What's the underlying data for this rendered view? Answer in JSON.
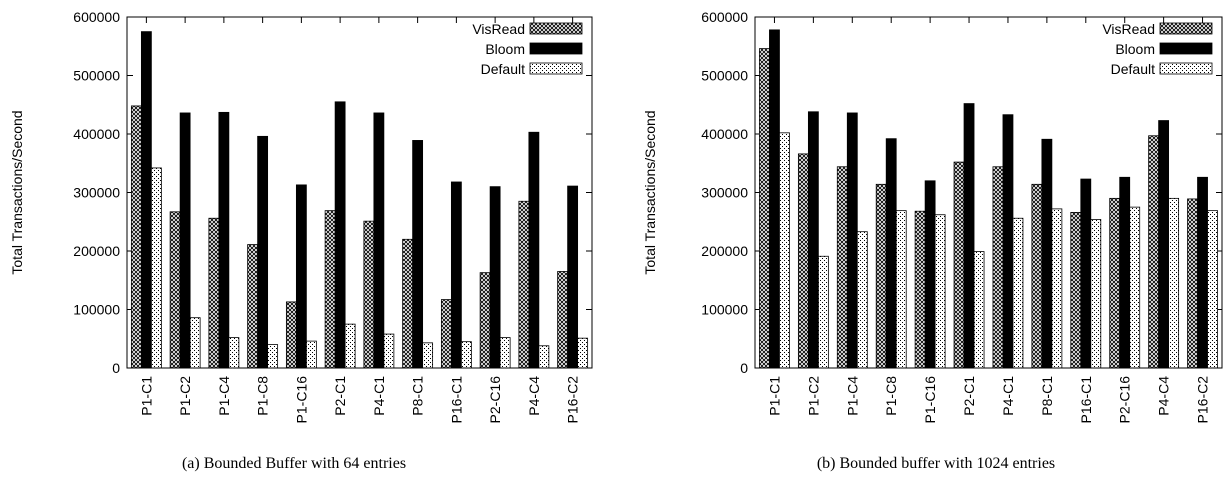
{
  "chart_data": [
    {
      "type": "bar",
      "caption": "(a)  Bounded Buffer with 64 entries",
      "ylabel": "Total Transactions/Second",
      "xlabel": "",
      "ylim": [
        0,
        600000
      ],
      "yticks": [
        0,
        100000,
        200000,
        300000,
        400000,
        500000,
        600000
      ],
      "categories": [
        "P1-C1",
        "P1-C2",
        "P1-C4",
        "P1-C8",
        "P1-C16",
        "P2-C1",
        "P4-C1",
        "P8-C1",
        "P16-C1",
        "P2-C16",
        "P4-C4",
        "P16-C2"
      ],
      "legend_position": "top-right",
      "series": [
        {
          "name": "VisRead",
          "pattern": "crosshatch",
          "values": [
            448000,
            267000,
            256000,
            211000,
            113000,
            269000,
            251000,
            220000,
            117000,
            163000,
            285000,
            165000
          ]
        },
        {
          "name": "Bloom",
          "pattern": "solid",
          "values": [
            575000,
            436000,
            437000,
            396000,
            313000,
            455000,
            436000,
            389000,
            318000,
            310000,
            403000,
            311000
          ]
        },
        {
          "name": "Default",
          "pattern": "dots",
          "values": [
            342000,
            86000,
            52000,
            40000,
            46000,
            75000,
            58000,
            43000,
            45000,
            52000,
            38000,
            51000
          ]
        }
      ]
    },
    {
      "type": "bar",
      "caption": "(b)  Bounded buffer with 1024 entries",
      "ylabel": "Total Transactions/Second",
      "xlabel": "",
      "ylim": [
        0,
        600000
      ],
      "yticks": [
        0,
        100000,
        200000,
        300000,
        400000,
        500000,
        600000
      ],
      "categories": [
        "P1-C1",
        "P1-C2",
        "P1-C4",
        "P1-C8",
        "P1-C16",
        "P2-C1",
        "P4-C1",
        "P8-C1",
        "P16-C1",
        "P2-C16",
        "P4-C4",
        "P16-C2"
      ],
      "legend_position": "top-right",
      "series": [
        {
          "name": "VisRead",
          "pattern": "crosshatch",
          "values": [
            546000,
            366000,
            344000,
            314000,
            268000,
            352000,
            344000,
            314000,
            266000,
            290000,
            397000,
            289000
          ]
        },
        {
          "name": "Bloom",
          "pattern": "solid",
          "values": [
            578000,
            438000,
            436000,
            392000,
            320000,
            452000,
            433000,
            391000,
            323000,
            326000,
            423000,
            326000
          ]
        },
        {
          "name": "Default",
          "pattern": "dots",
          "values": [
            402000,
            191000,
            233000,
            269000,
            262000,
            199000,
            256000,
            272000,
            254000,
            275000,
            290000,
            269000
          ]
        }
      ]
    }
  ]
}
